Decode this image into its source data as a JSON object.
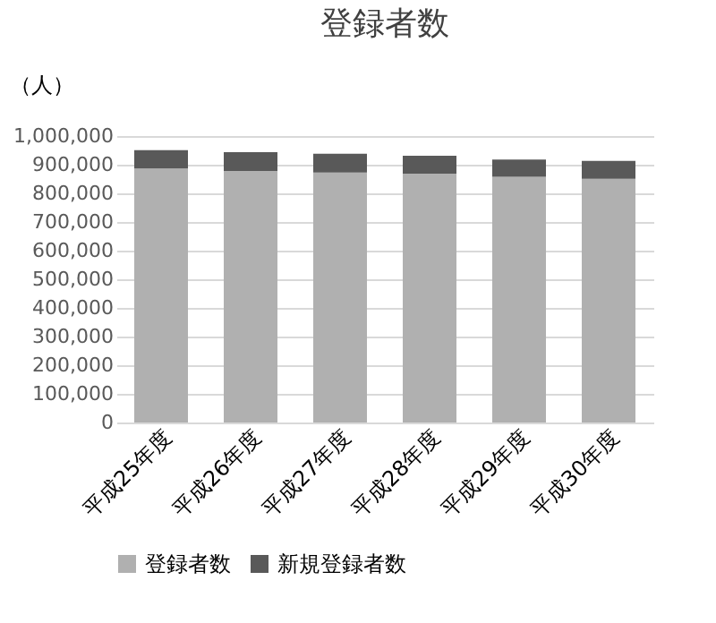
{
  "chart_data": {
    "type": "bar",
    "title": "登録者数",
    "ylabel": "（人）",
    "stacked": true,
    "categories": [
      "平成25年度",
      "平成26年度",
      "平成27年度",
      "平成28年度",
      "平成29年度",
      "平成30年度"
    ],
    "series": [
      {
        "name": "登録者数",
        "color": "#b0b0b0",
        "values": [
          887000,
          878000,
          873000,
          869000,
          858000,
          851000
        ]
      },
      {
        "name": "新規登録者数",
        "color": "#595959",
        "values": [
          64000,
          66000,
          65000,
          62000,
          60000,
          62000
        ]
      }
    ],
    "ylim": [
      0,
      1000000
    ],
    "yticks": [
      0,
      {
        "value": 100000,
        "label": "100,000"
      },
      {
        "value": 200000,
        "label": "200,000"
      },
      {
        "value": 300000,
        "label": "300,000"
      },
      {
        "value": 400000,
        "label": "400,000"
      },
      {
        "value": 500000,
        "label": "500,000"
      },
      {
        "value": 600000,
        "label": "600,000"
      },
      {
        "value": 700000,
        "label": "700,000"
      },
      {
        "value": 800000,
        "label": "800,000"
      },
      {
        "value": 900000,
        "label": "900,000"
      },
      {
        "value": 1000000,
        "label": "1,000,000"
      }
    ],
    "grid": "y",
    "legend": "bottom"
  }
}
